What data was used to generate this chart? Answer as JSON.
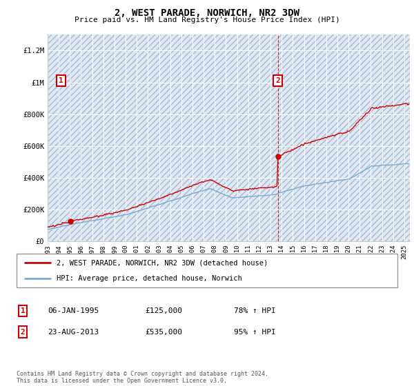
{
  "title": "2, WEST PARADE, NORWICH, NR2 3DW",
  "subtitle": "Price paid vs. HM Land Registry's House Price Index (HPI)",
  "title_fontsize": 10,
  "subtitle_fontsize": 8.5,
  "ylabel_ticks": [
    "£0",
    "£200K",
    "£400K",
    "£600K",
    "£800K",
    "£1M",
    "£1.2M"
  ],
  "ytick_values": [
    0,
    200000,
    400000,
    600000,
    800000,
    1000000,
    1200000
  ],
  "ylim": [
    0,
    1300000
  ],
  "xlim_start": 1993.0,
  "xlim_end": 2025.5,
  "hpi_color": "#7aaad0",
  "price_color": "#cc0000",
  "bg_color": "#dce8f5",
  "grid_color": "#ffffff",
  "sale1_x": 1995.03,
  "sale1_y": 125000,
  "sale2_x": 2013.65,
  "sale2_y": 535000,
  "legend_entries": [
    "2, WEST PARADE, NORWICH, NR2 3DW (detached house)",
    "HPI: Average price, detached house, Norwich"
  ],
  "table_rows": [
    {
      "num": "1",
      "date": "06-JAN-1995",
      "price": "£125,000",
      "hpi": "78% ↑ HPI"
    },
    {
      "num": "2",
      "date": "23-AUG-2013",
      "price": "£535,000",
      "hpi": "95% ↑ HPI"
    }
  ],
  "footer": "Contains HM Land Registry data © Crown copyright and database right 2024.\nThis data is licensed under the Open Government Licence v3.0.",
  "xtick_years": [
    1993,
    1994,
    1995,
    1996,
    1997,
    1998,
    1999,
    2000,
    2001,
    2002,
    2003,
    2004,
    2005,
    2006,
    2007,
    2008,
    2009,
    2010,
    2011,
    2012,
    2013,
    2014,
    2015,
    2016,
    2017,
    2018,
    2019,
    2020,
    2021,
    2022,
    2023,
    2024,
    2025
  ]
}
